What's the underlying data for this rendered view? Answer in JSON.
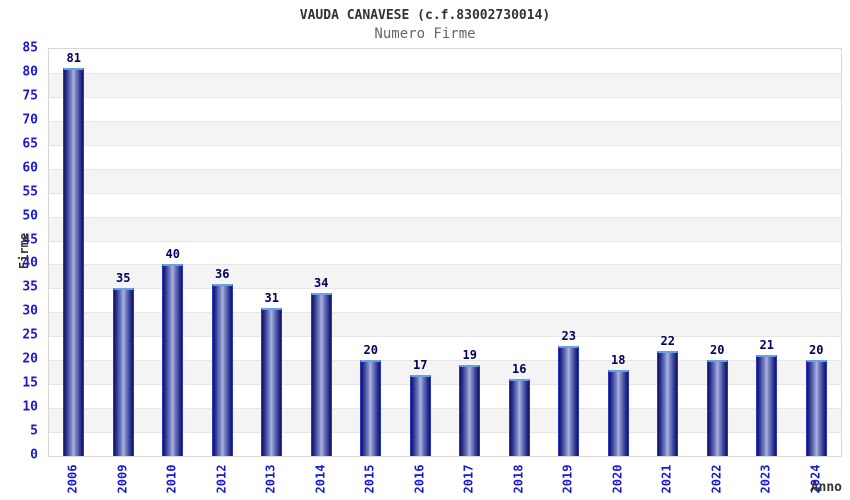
{
  "chart_data": {
    "type": "bar",
    "title": "VAUDA CANAVESE (c.f.83002730014)",
    "subtitle": "Numero Firme",
    "xlabel": "Anno",
    "ylabel": "Firme",
    "categories": [
      "2006",
      "2009",
      "2010",
      "2012",
      "2013",
      "2014",
      "2015",
      "2016",
      "2017",
      "2018",
      "2019",
      "2020",
      "2021",
      "2022",
      "2023",
      "2024"
    ],
    "values": [
      81,
      35,
      40,
      36,
      31,
      34,
      20,
      17,
      19,
      16,
      23,
      18,
      22,
      20,
      21,
      20
    ],
    "ylim": [
      0,
      85
    ],
    "ytick_step": 5,
    "grid": "horizontal alternating bands, light gray stripes every 5 units",
    "legend": "none",
    "colors": {
      "tick_label": "#1a1acd",
      "value_label": "#00005e",
      "title": "#333333",
      "subtitle": "#666666",
      "axis_title": "#333333",
      "bar_dark": "#12126a",
      "bar_light": "#aeb6e2",
      "bar_top_edge": "#66a2e2",
      "bar_side_edge": "#2a35c0",
      "band_gray": "#f4f4f4",
      "gridline": "#e6e6e6",
      "plot_border": "#d6d6d6",
      "background": "#ffffff"
    }
  }
}
